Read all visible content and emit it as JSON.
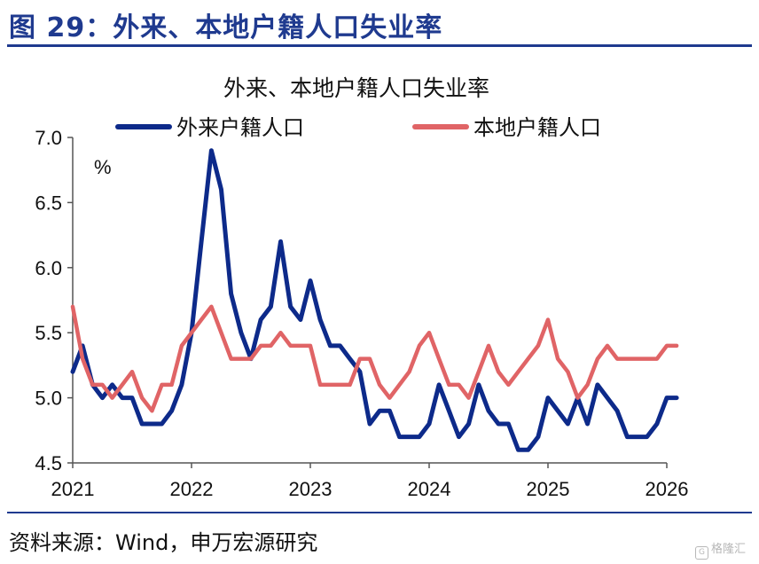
{
  "figure": {
    "title": "图 29：外来、本地户籍人口失业率",
    "source": "资料来源：Wind，申万宏源研究",
    "watermark": "格隆汇",
    "watermark_glyph": "G"
  },
  "chart_data": {
    "type": "line",
    "title": "外来、本地户籍人口失业率",
    "unit_label": "%",
    "xlabel": "",
    "ylabel": "",
    "ylim": [
      4.5,
      7.0
    ],
    "yticks": [
      "4.5",
      "5.0",
      "5.5",
      "6.0",
      "6.5",
      "7.0"
    ],
    "xlim": [
      2021,
      2026
    ],
    "xticks": [
      "2021",
      "2022",
      "2023",
      "2024",
      "2025",
      "2026"
    ],
    "grid": false,
    "legend_position": "top",
    "series": [
      {
        "name": "外来户籍人口",
        "color": "#0d2a8a",
        "x": [
          2021.0,
          2021.083,
          2021.167,
          2021.25,
          2021.333,
          2021.417,
          2021.5,
          2021.583,
          2021.667,
          2021.75,
          2021.833,
          2021.917,
          2022.0,
          2022.083,
          2022.167,
          2022.25,
          2022.333,
          2022.417,
          2022.5,
          2022.583,
          2022.667,
          2022.75,
          2022.833,
          2022.917,
          2023.0,
          2023.083,
          2023.167,
          2023.25,
          2023.333,
          2023.417,
          2023.5,
          2023.583,
          2023.667,
          2023.75,
          2023.833,
          2023.917,
          2024.0,
          2024.083,
          2024.167,
          2024.25,
          2024.333,
          2024.417,
          2024.5,
          2024.583,
          2024.667,
          2024.75,
          2024.833,
          2024.917,
          2025.0,
          2025.083,
          2025.167,
          2025.25,
          2025.333,
          2025.417,
          2025.5,
          2025.583,
          2025.667,
          2025.75,
          2025.833,
          2025.917,
          2026.0,
          2026.083
        ],
        "values": [
          5.2,
          5.4,
          5.1,
          5.0,
          5.1,
          5.0,
          5.0,
          4.8,
          4.8,
          4.8,
          4.9,
          5.1,
          5.5,
          6.2,
          6.9,
          6.6,
          5.8,
          5.5,
          5.3,
          5.6,
          5.7,
          6.2,
          5.7,
          5.6,
          5.9,
          5.6,
          5.4,
          5.4,
          5.3,
          5.2,
          4.8,
          4.9,
          4.9,
          4.7,
          4.7,
          4.7,
          4.8,
          5.1,
          4.9,
          4.7,
          4.8,
          5.1,
          4.9,
          4.8,
          4.8,
          4.6,
          4.6,
          4.7,
          5.0,
          4.9,
          4.8,
          5.0,
          4.8,
          5.1,
          5.0,
          4.9,
          4.7,
          4.7,
          4.7,
          4.8,
          5.0,
          5.0
        ]
      },
      {
        "name": "本地户籍人口",
        "color": "#e06466",
        "x": [
          2021.0,
          2021.083,
          2021.167,
          2021.25,
          2021.333,
          2021.417,
          2021.5,
          2021.583,
          2021.667,
          2021.75,
          2021.833,
          2021.917,
          2022.0,
          2022.083,
          2022.167,
          2022.25,
          2022.333,
          2022.417,
          2022.5,
          2022.583,
          2022.667,
          2022.75,
          2022.833,
          2022.917,
          2023.0,
          2023.083,
          2023.167,
          2023.25,
          2023.333,
          2023.417,
          2023.5,
          2023.583,
          2023.667,
          2023.75,
          2023.833,
          2023.917,
          2024.0,
          2024.083,
          2024.167,
          2024.25,
          2024.333,
          2024.417,
          2024.5,
          2024.583,
          2024.667,
          2024.75,
          2024.833,
          2024.917,
          2025.0,
          2025.083,
          2025.167,
          2025.25,
          2025.333,
          2025.417,
          2025.5,
          2025.583,
          2025.667,
          2025.75,
          2025.833,
          2025.917,
          2026.0,
          2026.083
        ],
        "values": [
          5.7,
          5.3,
          5.1,
          5.1,
          5.0,
          5.1,
          5.2,
          5.0,
          4.9,
          5.1,
          5.1,
          5.4,
          5.5,
          5.6,
          5.7,
          5.5,
          5.3,
          5.3,
          5.3,
          5.4,
          5.4,
          5.5,
          5.4,
          5.4,
          5.4,
          5.1,
          5.1,
          5.1,
          5.1,
          5.3,
          5.3,
          5.1,
          5.0,
          5.1,
          5.2,
          5.4,
          5.5,
          5.3,
          5.1,
          5.1,
          5.0,
          5.2,
          5.4,
          5.2,
          5.1,
          5.2,
          5.3,
          5.4,
          5.6,
          5.3,
          5.2,
          5.0,
          5.1,
          5.3,
          5.4,
          5.3,
          5.3,
          5.3,
          5.3,
          5.3,
          5.4,
          5.4
        ]
      }
    ]
  }
}
